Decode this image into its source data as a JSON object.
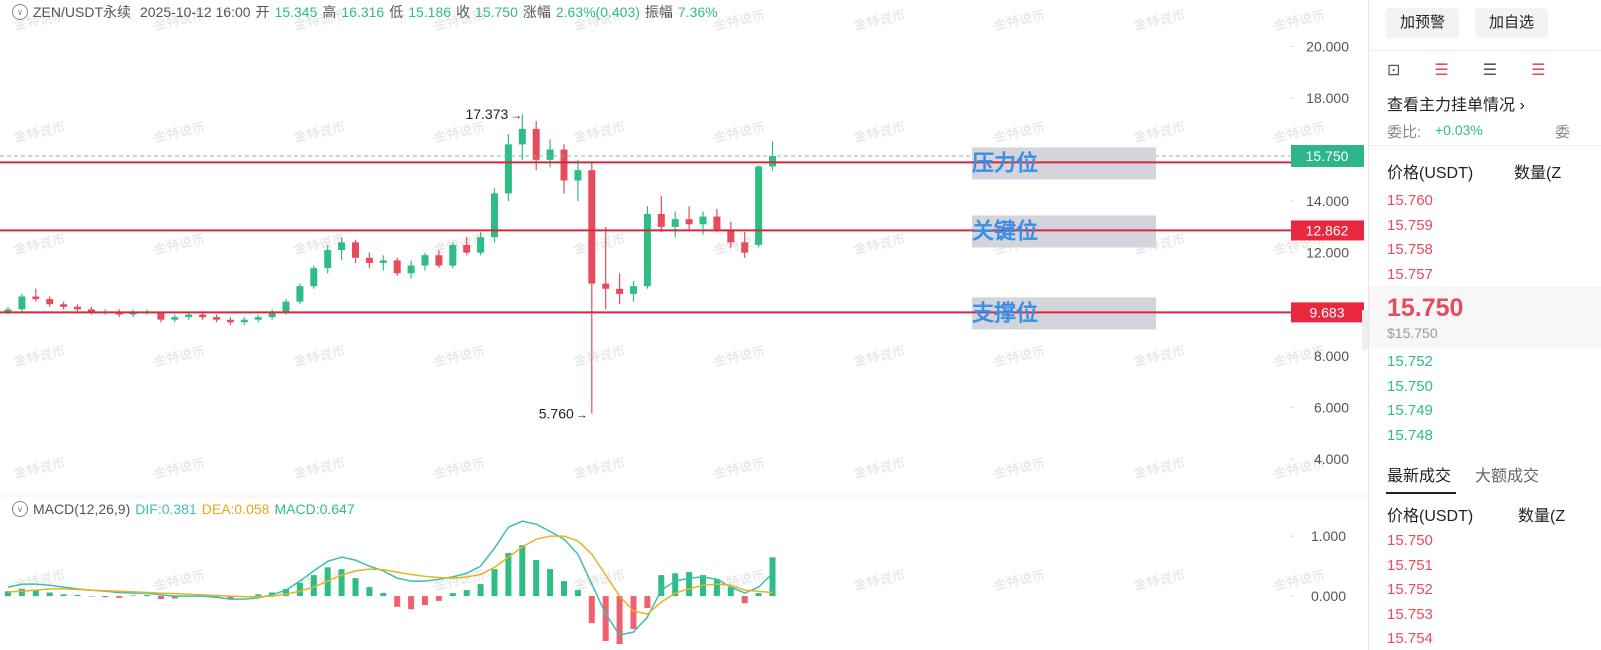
{
  "header": {
    "symbol": "ZEN/USDT永续",
    "time": "2025-10-12 16:00",
    "open_label": "开",
    "open": "15.345",
    "high_label": "高",
    "high": "16.316",
    "low_label": "低",
    "low": "15.186",
    "close_label": "收",
    "close": "15.750",
    "change_label": "涨幅",
    "change": "2.63%(0.403)",
    "amplitude_label": "振幅",
    "amplitude": "7.36%"
  },
  "watermark": "金特说币",
  "chart_data": [
    {
      "type": "candlestick",
      "up_color": "#2ebd85",
      "down_color": "#e74c5c",
      "ylim": [
        2.6,
        21.8
      ],
      "yticks": [
        {
          "value": 20,
          "label": "20.000"
        },
        {
          "value": 18,
          "label": "18.000"
        },
        {
          "value": 14,
          "label": "14.000"
        },
        {
          "value": 12,
          "label": "12.000"
        },
        {
          "value": 8,
          "label": "8.000"
        },
        {
          "value": 6,
          "label": "6.000"
        },
        {
          "value": 4,
          "label": "4.000"
        }
      ],
      "current_price": {
        "value": 15.75,
        "label": "15.750"
      },
      "high_annotation": "17.373",
      "low_annotation": "5.760",
      "levels": [
        {
          "name": "压力位",
          "value": 15.5
        },
        {
          "name": "关键位",
          "value": 12.862,
          "label": "12.862"
        },
        {
          "name": "支撑位",
          "value": 9.683,
          "label": "9.683"
        }
      ],
      "candles": [
        [
          9.7,
          9.9,
          9.6,
          9.8
        ],
        [
          9.8,
          10.4,
          9.7,
          10.3
        ],
        [
          10.3,
          10.6,
          10.1,
          10.2
        ],
        [
          10.2,
          10.3,
          9.9,
          10.0
        ],
        [
          10.0,
          10.1,
          9.8,
          9.9
        ],
        [
          9.9,
          10.0,
          9.7,
          9.8
        ],
        [
          9.8,
          9.9,
          9.6,
          9.7
        ],
        [
          9.7,
          9.8,
          9.6,
          9.7
        ],
        [
          9.7,
          9.8,
          9.5,
          9.6
        ],
        [
          9.6,
          9.8,
          9.5,
          9.7
        ],
        [
          9.7,
          9.8,
          9.6,
          9.7
        ],
        [
          9.7,
          9.7,
          9.3,
          9.4
        ],
        [
          9.4,
          9.6,
          9.3,
          9.5
        ],
        [
          9.5,
          9.7,
          9.4,
          9.6
        ],
        [
          9.6,
          9.7,
          9.4,
          9.5
        ],
        [
          9.5,
          9.6,
          9.3,
          9.4
        ],
        [
          9.4,
          9.5,
          9.2,
          9.3
        ],
        [
          9.3,
          9.5,
          9.2,
          9.4
        ],
        [
          9.4,
          9.6,
          9.3,
          9.5
        ],
        [
          9.5,
          9.8,
          9.4,
          9.7
        ],
        [
          9.7,
          10.2,
          9.6,
          10.1
        ],
        [
          10.1,
          10.8,
          10.0,
          10.7
        ],
        [
          10.7,
          11.5,
          10.6,
          11.4
        ],
        [
          11.4,
          12.3,
          11.2,
          12.1
        ],
        [
          12.1,
          12.6,
          11.7,
          12.4
        ],
        [
          12.4,
          12.5,
          11.6,
          11.8
        ],
        [
          11.8,
          12.0,
          11.4,
          11.6
        ],
        [
          11.6,
          11.9,
          11.3,
          11.7
        ],
        [
          11.7,
          11.8,
          11.1,
          11.2
        ],
        [
          11.2,
          11.7,
          11.0,
          11.5
        ],
        [
          11.5,
          12.0,
          11.3,
          11.9
        ],
        [
          11.9,
          12.1,
          11.4,
          11.5
        ],
        [
          11.5,
          12.4,
          11.4,
          12.3
        ],
        [
          12.3,
          12.6,
          11.9,
          12.0
        ],
        [
          12.0,
          12.8,
          11.9,
          12.6
        ],
        [
          12.6,
          14.5,
          12.4,
          14.3
        ],
        [
          14.3,
          16.6,
          14.0,
          16.2
        ],
        [
          16.2,
          17.373,
          15.6,
          16.8
        ],
        [
          16.8,
          17.1,
          15.2,
          15.6
        ],
        [
          15.6,
          16.4,
          15.3,
          16.0
        ],
        [
          16.0,
          16.2,
          14.3,
          14.8
        ],
        [
          14.8,
          15.6,
          14.0,
          15.2
        ],
        [
          15.2,
          15.5,
          5.76,
          10.8
        ],
        [
          10.8,
          13.0,
          9.8,
          10.6
        ],
        [
          10.6,
          11.2,
          10.0,
          10.4
        ],
        [
          10.4,
          10.9,
          10.1,
          10.7
        ],
        [
          10.7,
          13.8,
          10.6,
          13.5
        ],
        [
          13.5,
          14.2,
          12.8,
          13.0
        ],
        [
          13.0,
          13.6,
          12.6,
          13.3
        ],
        [
          13.3,
          13.8,
          12.9,
          13.1
        ],
        [
          13.1,
          13.6,
          12.7,
          13.4
        ],
        [
          13.4,
          13.7,
          12.8,
          12.9
        ],
        [
          12.9,
          13.2,
          12.2,
          12.4
        ],
        [
          12.4,
          12.8,
          11.8,
          12.0
        ],
        [
          12.3,
          15.4,
          12.2,
          15.345
        ],
        [
          15.345,
          16.316,
          15.186,
          15.75
        ]
      ]
    },
    {
      "type": "macd",
      "title": "MACD(12,26,9)",
      "dif_label": "DIF:0.381",
      "dea_label": "DEA:0.058",
      "macd_label": "MACD:0.647",
      "ylim": [
        -0.9,
        1.27
      ],
      "yticks": [
        {
          "value": 1,
          "label": "1.000"
        },
        {
          "value": 0,
          "label": "0.000"
        }
      ],
      "series": [
        {
          "name": "DIF",
          "color": "#3dbfb0",
          "values": [
            0.15,
            0.2,
            0.2,
            0.18,
            0.15,
            0.12,
            0.1,
            0.08,
            0.06,
            0.05,
            0.05,
            0.02,
            0.0,
            0.0,
            0.0,
            -0.02,
            -0.05,
            -0.05,
            -0.03,
            0.02,
            0.1,
            0.25,
            0.42,
            0.58,
            0.65,
            0.6,
            0.5,
            0.42,
            0.3,
            0.25,
            0.25,
            0.28,
            0.32,
            0.38,
            0.5,
            0.8,
            1.15,
            1.25,
            1.2,
            1.08,
            0.95,
            0.7,
            0.2,
            -0.3,
            -0.65,
            -0.6,
            -0.35,
            0.1,
            0.25,
            0.3,
            0.32,
            0.28,
            0.15,
            0.05,
            0.15,
            0.381
          ]
        },
        {
          "name": "DEA",
          "color": "#e6b422",
          "values": [
            0.07,
            0.08,
            0.1,
            0.12,
            0.12,
            0.11,
            0.1,
            0.09,
            0.08,
            0.07,
            0.06,
            0.05,
            0.04,
            0.03,
            0.02,
            0.01,
            0.0,
            -0.01,
            -0.01,
            0.0,
            0.03,
            0.08,
            0.15,
            0.25,
            0.35,
            0.42,
            0.45,
            0.44,
            0.4,
            0.36,
            0.33,
            0.31,
            0.3,
            0.32,
            0.36,
            0.48,
            0.65,
            0.82,
            0.95,
            1.0,
            1.0,
            0.92,
            0.7,
            0.35,
            0.0,
            -0.25,
            -0.3,
            -0.1,
            0.05,
            0.12,
            0.18,
            0.2,
            0.18,
            0.1,
            0.08,
            0.058
          ]
        },
        {
          "name": "MACD",
          "values": [
            0.08,
            0.12,
            0.1,
            0.06,
            0.03,
            0.02,
            0.0,
            -0.02,
            -0.03,
            0.01,
            0.02,
            -0.05,
            -0.04,
            0.01,
            0.02,
            -0.03,
            -0.05,
            -0.02,
            0.03,
            0.06,
            0.12,
            0.22,
            0.35,
            0.48,
            0.45,
            0.3,
            0.15,
            0.05,
            -0.18,
            -0.22,
            -0.15,
            -0.08,
            0.05,
            0.1,
            0.2,
            0.45,
            0.72,
            0.85,
            0.6,
            0.45,
            0.25,
            0.1,
            -0.45,
            -0.75,
            -0.8,
            -0.55,
            -0.2,
            0.35,
            0.38,
            0.4,
            0.35,
            0.28,
            0.15,
            -0.12,
            0.05,
            0.647
          ]
        }
      ]
    }
  ],
  "panel": {
    "alert": "加预警",
    "watch": "加自选",
    "orders_link": "查看主力挂单情况",
    "ratio_label": "委比:",
    "ratio": "+0.03%",
    "ratio_cut": "委",
    "price_col": "价格(USDT)",
    "qty_col": "数量(Z",
    "asks": [
      "15.760",
      "15.759",
      "15.758",
      "15.757"
    ],
    "last": "15.750",
    "last_usd": "$15.750",
    "bids": [
      "15.752",
      "15.750",
      "15.749",
      "15.748"
    ],
    "tab_latest": "最新成交",
    "tab_large": "大额成交",
    "trade_price_col": "价格(USDT)",
    "trade_qty_col": "数量(Z",
    "trades": [
      "15.750",
      "15.751",
      "15.752",
      "15.753",
      "15.754"
    ]
  }
}
